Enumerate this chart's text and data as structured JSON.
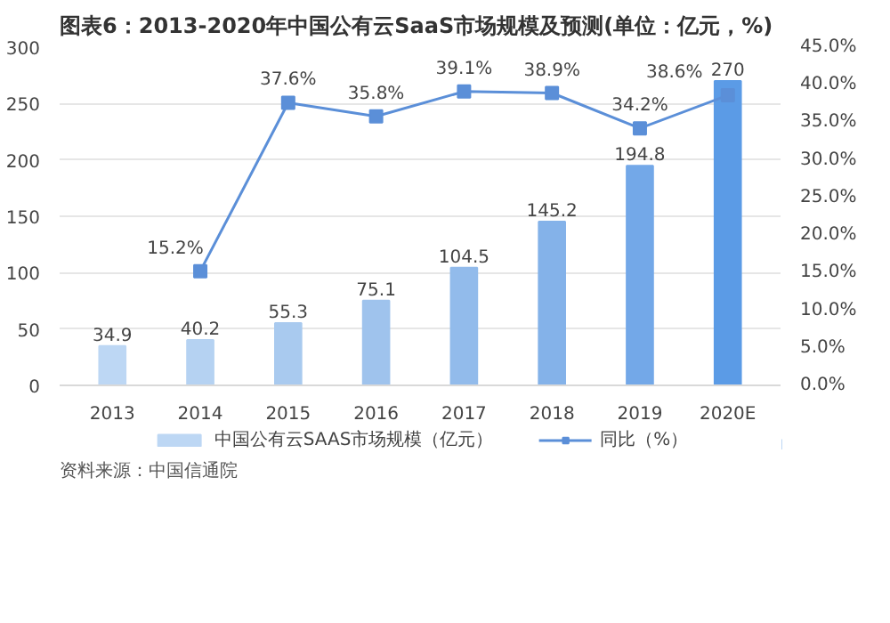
{
  "chart_data": {
    "type": "bar",
    "title": "图表6：2013-2020年中国公有云SaaS市场规模及预测(单位：亿元，%)",
    "categories": [
      "2013",
      "2014",
      "2015",
      "2016",
      "2017",
      "2018",
      "2019",
      "2020E"
    ],
    "series": [
      {
        "name": "中国公有云SAAS市场规模（亿元）",
        "colors": [
          "#bdd7f4",
          "#b5d2f2",
          "#a9caef",
          "#9fc3ed",
          "#92bbeb",
          "#84b2e9",
          "#73a8e8",
          "#5b9be6"
        ],
        "values": [
          34.9,
          40.2,
          55.3,
          75.1,
          104.5,
          145.2,
          194.8,
          270
        ]
      },
      {
        "name": "同比（%）",
        "type": "line",
        "axis": "y2",
        "color": "#5b8fd8",
        "values": [
          null,
          15.2,
          37.6,
          35.8,
          39.1,
          38.9,
          34.2,
          38.6
        ],
        "value_labels": [
          null,
          "15.2%",
          "37.6%",
          "35.8%",
          "39.1%",
          "38.9%",
          "34.2%",
          "38.6%"
        ]
      }
    ],
    "ylim": [
      0,
      300
    ],
    "yticks": [
      0,
      50,
      100,
      150,
      200,
      250,
      300
    ],
    "y2lim": [
      0,
      45
    ],
    "y2ticks": [
      {
        "value": 0,
        "label": "0.0%"
      },
      {
        "value": 5,
        "label": "5.0%"
      },
      {
        "value": 10,
        "label": "10.0%"
      },
      {
        "value": 15,
        "label": "15.0%"
      },
      {
        "value": 20,
        "label": "20.0%"
      },
      {
        "value": 25,
        "label": "25.0%"
      },
      {
        "value": 30,
        "label": "30.0%"
      },
      {
        "value": 35,
        "label": "35.0%"
      },
      {
        "value": 40,
        "label": "40.0%"
      },
      {
        "value": 45,
        "label": "45.0%"
      }
    ],
    "data_labels": true,
    "grid": "y",
    "legend": "bottom",
    "marker": "square",
    "line_style": "solid",
    "annotations": [
      "资料来源：中国信通院"
    ]
  }
}
